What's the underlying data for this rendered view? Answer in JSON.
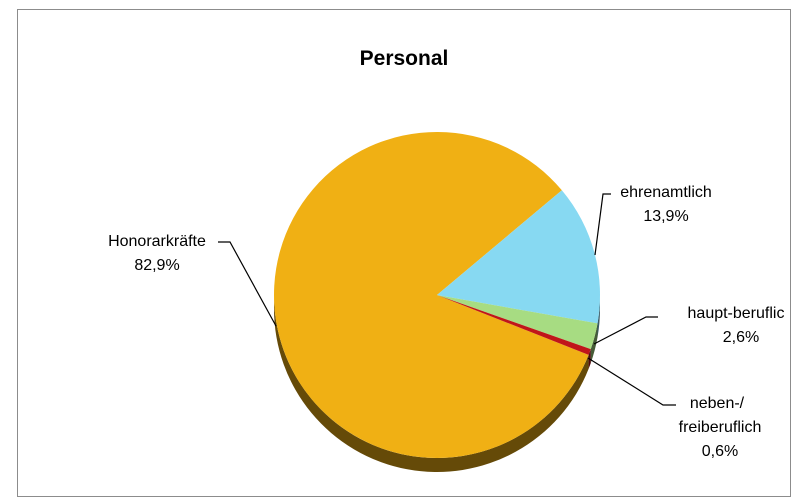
{
  "chart_data": {
    "type": "pie",
    "title": "Personal",
    "slices": [
      {
        "label": "Honorarkräfte",
        "value": 82.9,
        "value_label": "82,9%",
        "color": "#f0b014"
      },
      {
        "label": "ehrenamtlich",
        "value": 13.9,
        "value_label": "13,9%",
        "color": "#87d9f2"
      },
      {
        "label": "haupt-beruflic",
        "value": 2.6,
        "value_label": "2,6%",
        "color": "#a7dc82"
      },
      {
        "label": "neben-/",
        "label_line2": "freiberuflich",
        "value": 0.6,
        "value_label": "0,6%",
        "color": "#c0161a"
      }
    ],
    "legend": "none",
    "style": "3d"
  }
}
